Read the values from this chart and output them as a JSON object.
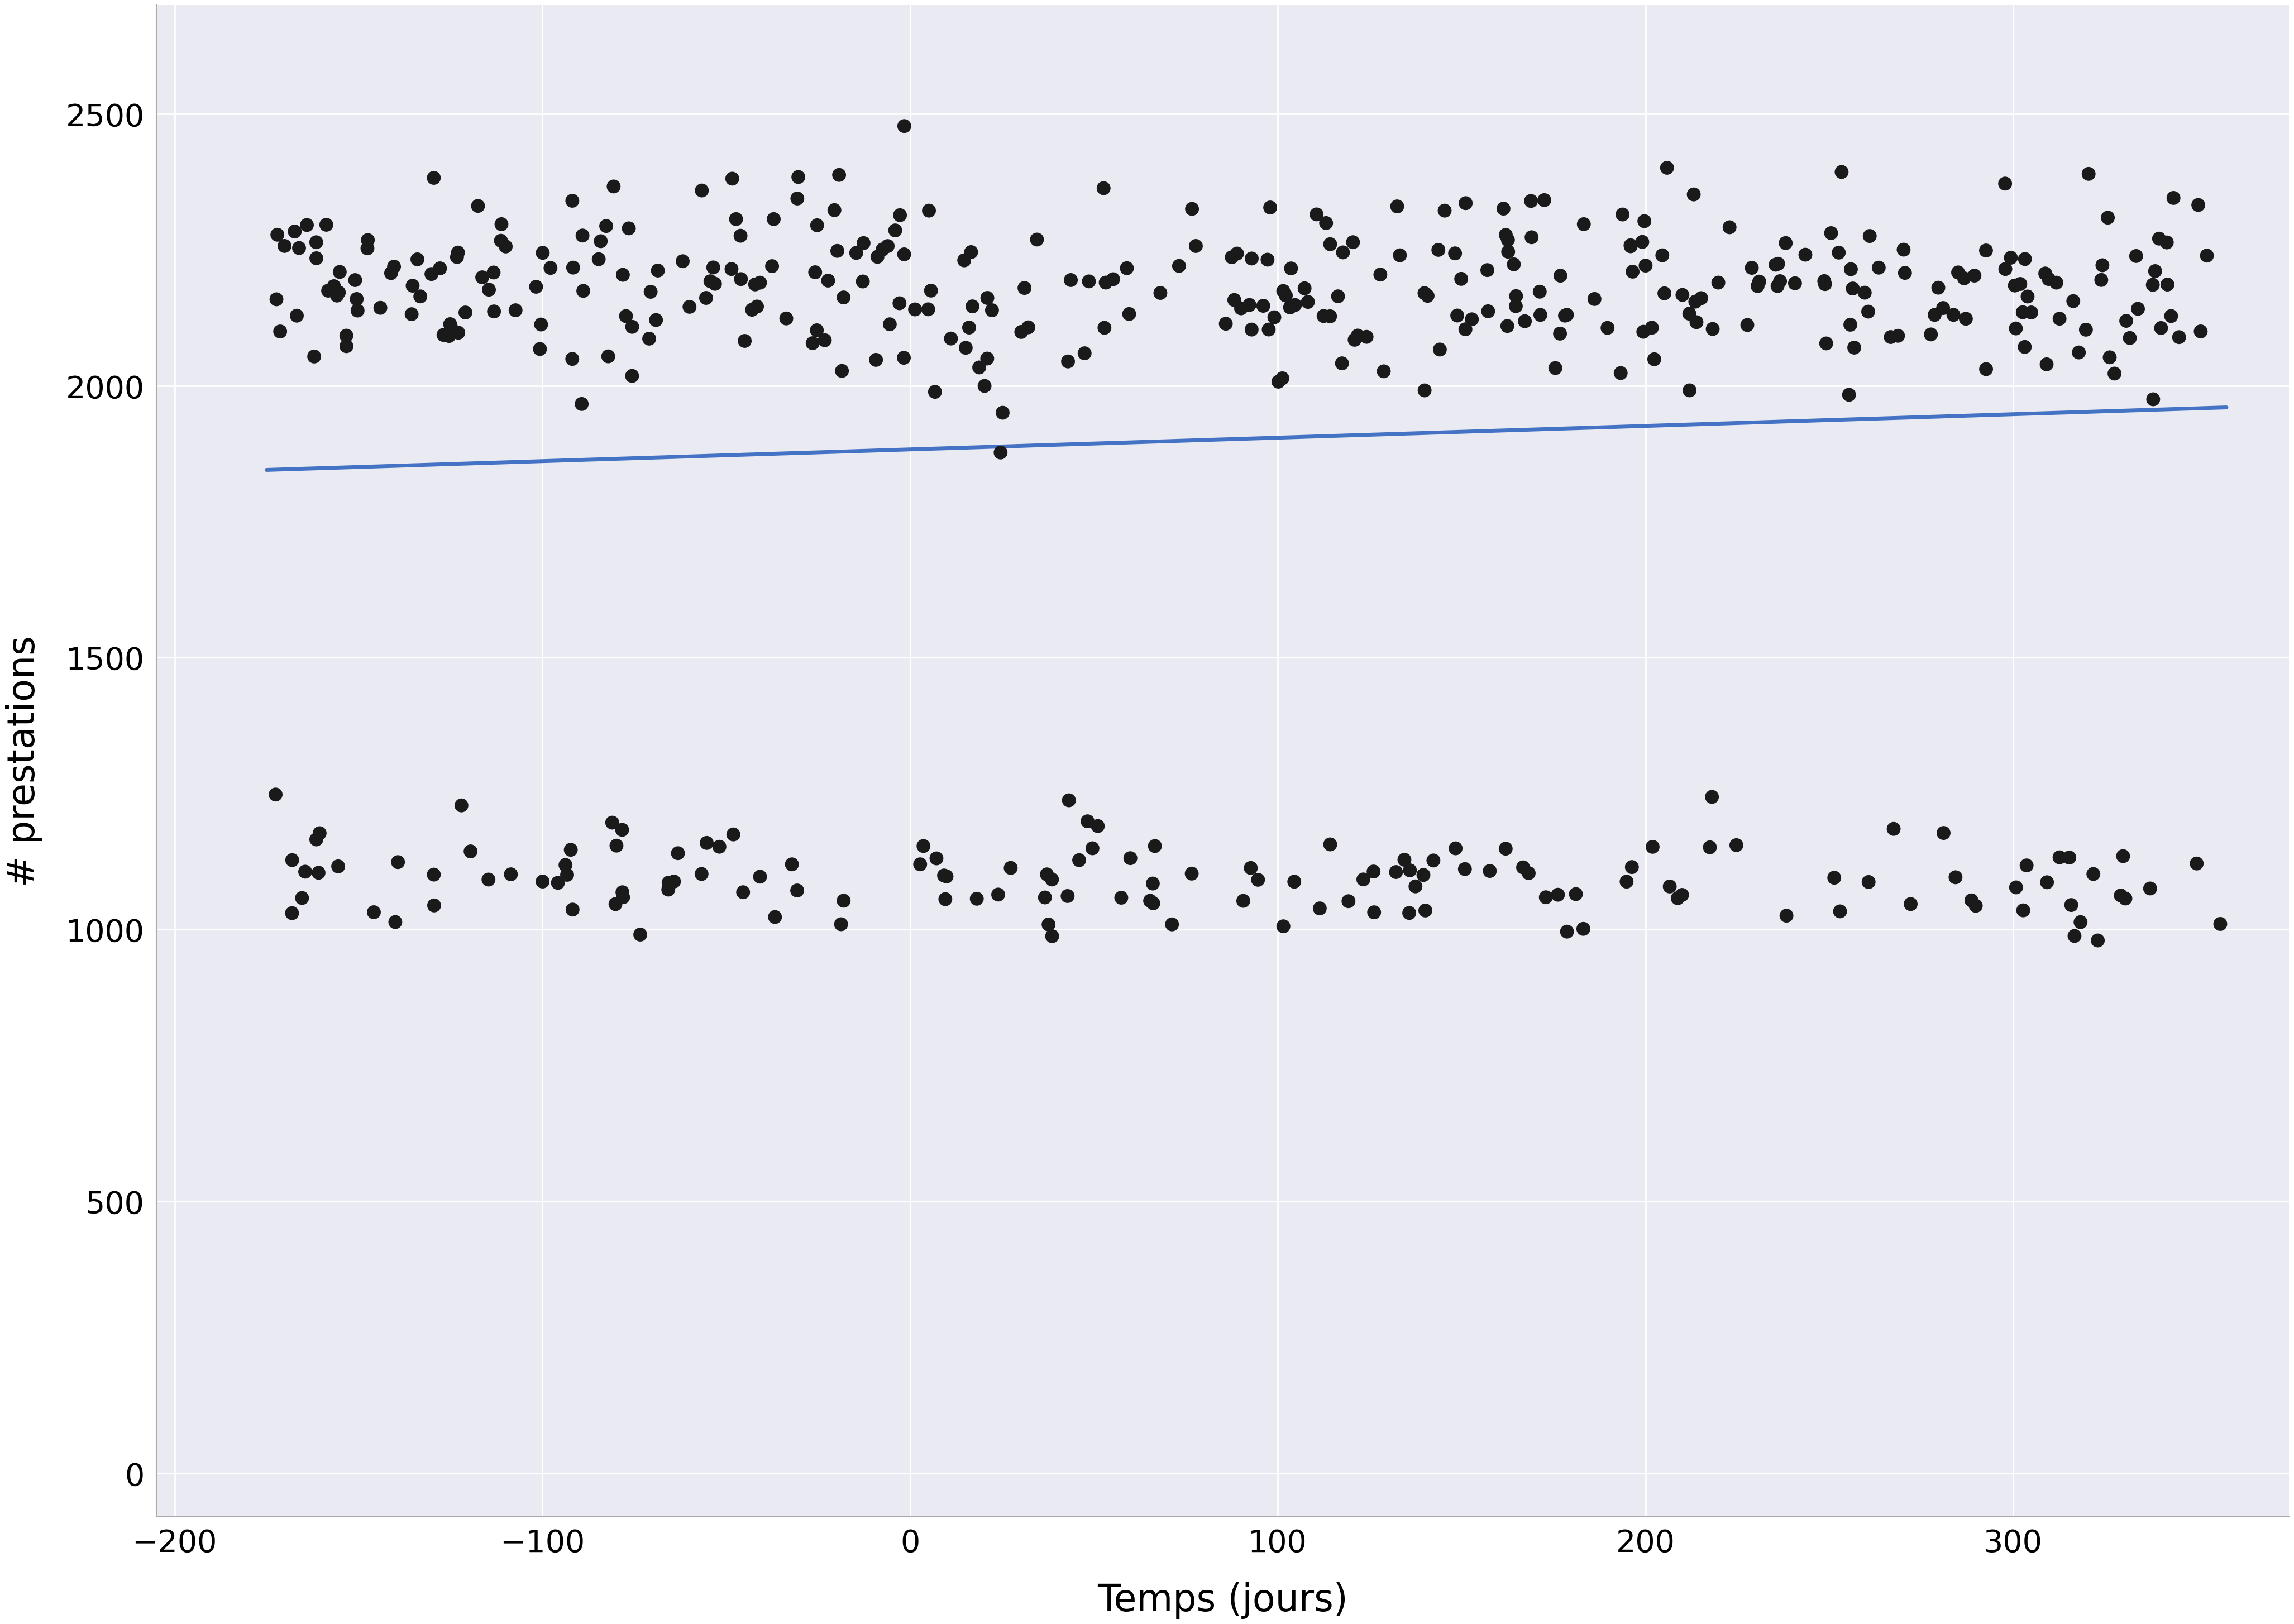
{
  "title": "",
  "xlabel": "Temps (jours)",
  "ylabel": "# prestations",
  "xlim": [
    -205,
    375
  ],
  "ylim": [
    -80,
    2700
  ],
  "xticks": [
    -200,
    -100,
    0,
    100,
    200,
    300
  ],
  "yticks": [
    0,
    500,
    1000,
    1500,
    2000,
    2500
  ],
  "background_color": "#FFFFFF",
  "panel_background": "#EAEAF2",
  "grid_color": "#FFFFFF",
  "dot_color": "#1A1A1A",
  "dot_size": 320,
  "line_color": "#4472C4",
  "line_width": 5.0,
  "line_x0": -175,
  "line_x1": 358,
  "line_y0": 1845,
  "line_y1": 1960,
  "seed": 42,
  "upper_n": 340,
  "upper_x_min": -175,
  "upper_x_max": 358,
  "upper_y_mean": 2185,
  "upper_y_std": 95,
  "upper_y_clip_low": 1730,
  "upper_y_clip_high": 2560,
  "lower_n": 140,
  "lower_x_min": -175,
  "lower_x_max": 358,
  "lower_y_mean": 1090,
  "lower_y_std": 60,
  "lower_y_clip_low": 890,
  "lower_y_clip_high": 1290,
  "font_size_label": 48,
  "font_size_tick": 40,
  "spine_color": "#AAAAAA"
}
